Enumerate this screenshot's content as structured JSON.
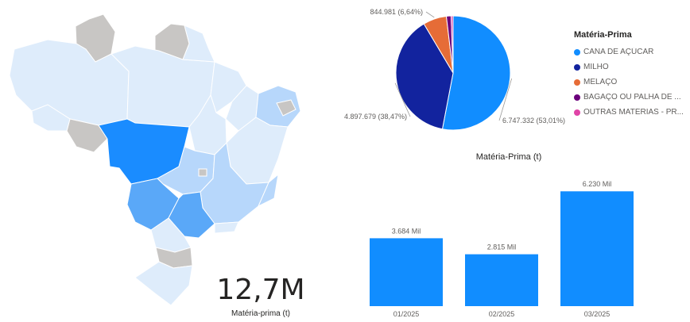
{
  "colors": {
    "map_default": "#deecfb",
    "map_gray": "#c8c6c4",
    "map_light": "#b7d7fb",
    "map_mid": "#5aa8f8",
    "map_dark": "#1a8cff",
    "border": "#ffffff"
  },
  "card": {
    "value": "12,7M",
    "label": "Matéria-prima (t)"
  },
  "legend": {
    "title": "Matéria-Prima",
    "items": [
      {
        "label": "CANA DE AÇÚCAR",
        "color": "#118dff"
      },
      {
        "label": "MILHO",
        "color": "#12239e"
      },
      {
        "label": "MELAÇO",
        "color": "#e66c37"
      },
      {
        "label": "BAGAÇO OU PALHA DE ...",
        "color": "#6b007b"
      },
      {
        "label": "OUTRAS MATÉRIAS - PR...",
        "color": "#e044a7"
      }
    ]
  },
  "chart_data": [
    {
      "type": "pie",
      "title": "",
      "slices": [
        {
          "name": "CANA DE AÇÚCAR",
          "value": 6747332,
          "label": "6.747.332 (53,01%)",
          "color": "#118dff"
        },
        {
          "name": "MILHO",
          "value": 4897679,
          "label": "4.897.679 (38,47%)",
          "color": "#12239e"
        },
        {
          "name": "MELAÇO",
          "value": 844981,
          "label": "844.981 (6,64%)",
          "color": "#e66c37"
        },
        {
          "name": "BAGAÇO OU PALHA DE ...",
          "value": 170000,
          "label": "",
          "color": "#6b007b"
        },
        {
          "name": "OUTRAS MATÉRIAS - PR...",
          "value": 70000,
          "label": "",
          "color": "#e044a7"
        }
      ]
    },
    {
      "type": "bar",
      "title": "Matéria-Prima (t)",
      "categories": [
        "01/2025",
        "02/2025",
        "03/2025"
      ],
      "values": [
        3684,
        2815,
        6230
      ],
      "labels": [
        "3.684 Mil",
        "2.815 Mil",
        "6.230 Mil"
      ],
      "ylim": [
        0,
        6800
      ],
      "color": "#118dff"
    }
  ]
}
